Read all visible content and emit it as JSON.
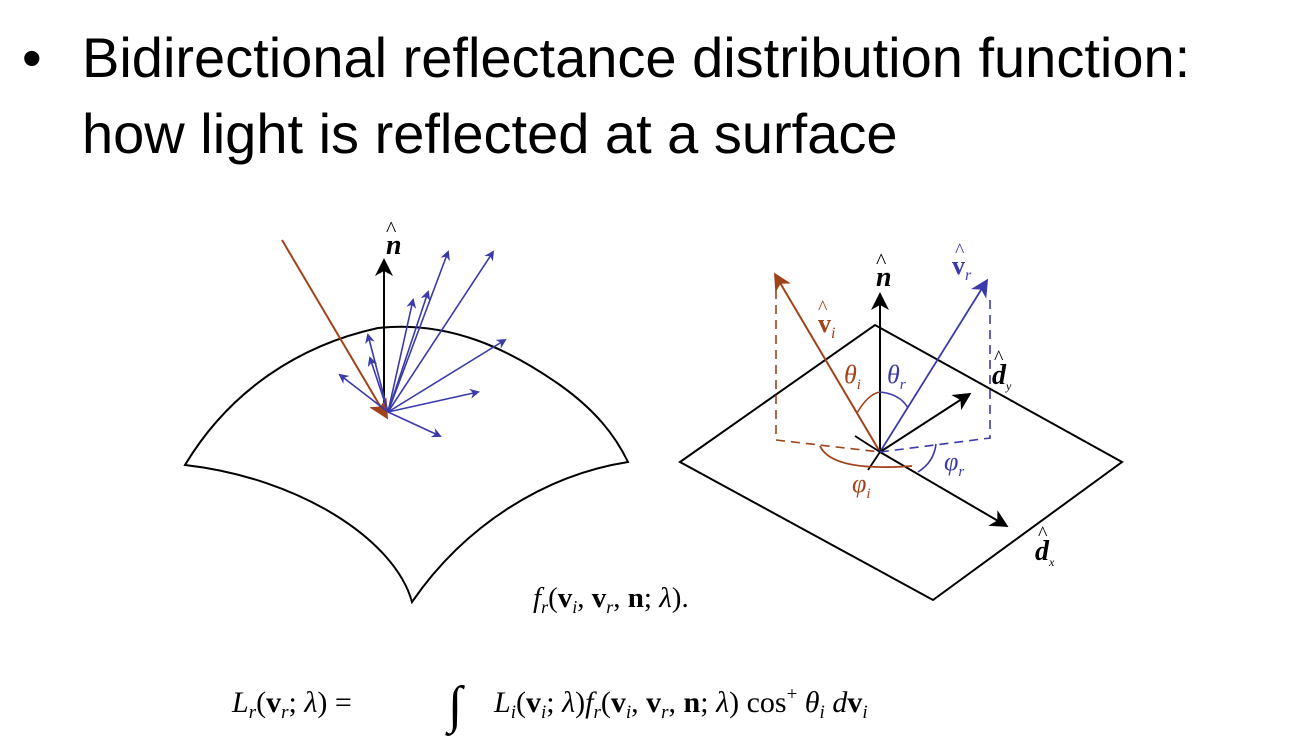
{
  "slide": {
    "bullet_marker": "•",
    "bullet_line_1": "Bidirectional reflectance distribution function:",
    "bullet_line_2": "how light is reflected at a surface"
  },
  "diagram": {
    "normal_label": "n",
    "hat": "^",
    "incident_label": "v",
    "incident_sub": "i",
    "reflected_label": "v",
    "reflected_sub": "r",
    "theta": "θ",
    "theta_i_sub": "i",
    "theta_r_sub": "r",
    "phi": "φ",
    "phi_i_sub": "i",
    "phi_r_sub": "r",
    "d": "d",
    "dy_sub": "y",
    "dx_sub": "x"
  },
  "formulas": {
    "brdf": {
      "f": "f",
      "r": "r",
      "open": "(",
      "v": "v",
      "i": "i",
      "comma": ", ",
      "n": "n",
      "semi": "; ",
      "lambda": "λ",
      "close": ")."
    },
    "render": {
      "L": "L",
      "r": "r",
      "open": "(",
      "v": "v",
      "semi": "; ",
      "lambda": "λ",
      "close_eq": ") =",
      "integral": "∫",
      "i": "i",
      "mid": ")",
      "f": "f",
      "comma": ", ",
      "n": "n",
      "close": ")",
      "cos": " cos",
      "plus": "+",
      "theta": " θ",
      "d": " d",
      "dv": "v"
    },
    "colors": {
      "incident": "#a0431a",
      "reflected": "#3b3ba8",
      "black": "#000000"
    }
  }
}
